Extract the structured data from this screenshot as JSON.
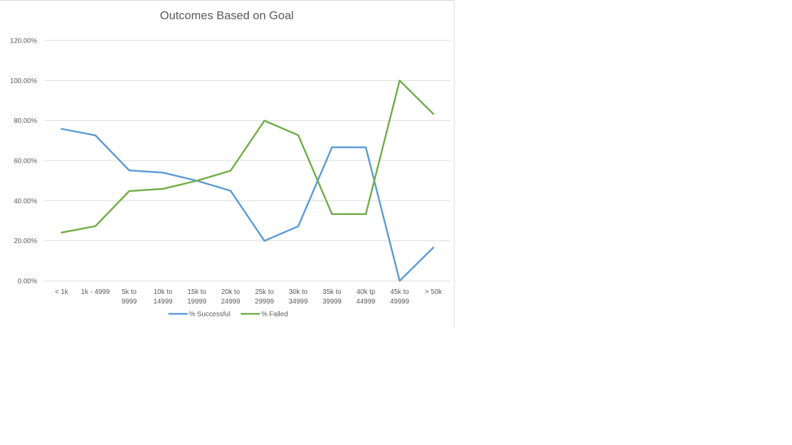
{
  "chart_data": {
    "type": "line",
    "title": "Outcomes Based on Goal",
    "xlabel": "",
    "ylabel": "",
    "categories": [
      [
        "< 1k"
      ],
      [
        "1k - 4999"
      ],
      [
        "5k to",
        "9999"
      ],
      [
        "10k to",
        "14999"
      ],
      [
        "15k to",
        "19999"
      ],
      [
        "20k to",
        "24999"
      ],
      [
        "25k to",
        "29999"
      ],
      [
        "30k to",
        "34999"
      ],
      [
        "35k to",
        "39999"
      ],
      [
        "40k tp",
        "44999"
      ],
      [
        "45k to",
        "49999"
      ],
      [
        "> 50k"
      ]
    ],
    "yticks": [
      "0.00%",
      "20.00%",
      "40.00%",
      "60.00%",
      "80.00%",
      "100.00%",
      "120.00%"
    ],
    "ylim": [
      0,
      1.2
    ],
    "grid": true,
    "legend_position": "bottom",
    "series": [
      {
        "name": "% Successful",
        "color": "#5b9bd5",
        "values": [
          0.7586,
          0.7266,
          0.5516,
          0.5405,
          0.5,
          0.45,
          0.2,
          0.2727,
          0.6667,
          0.6667,
          0.0,
          0.1667
        ]
      },
      {
        "name": "% Failed",
        "color": "#70ad47",
        "values": [
          0.2414,
          0.2734,
          0.4484,
          0.4595,
          0.5,
          0.55,
          0.8,
          0.7273,
          0.3333,
          0.3333,
          1.0,
          0.8333
        ]
      }
    ]
  }
}
